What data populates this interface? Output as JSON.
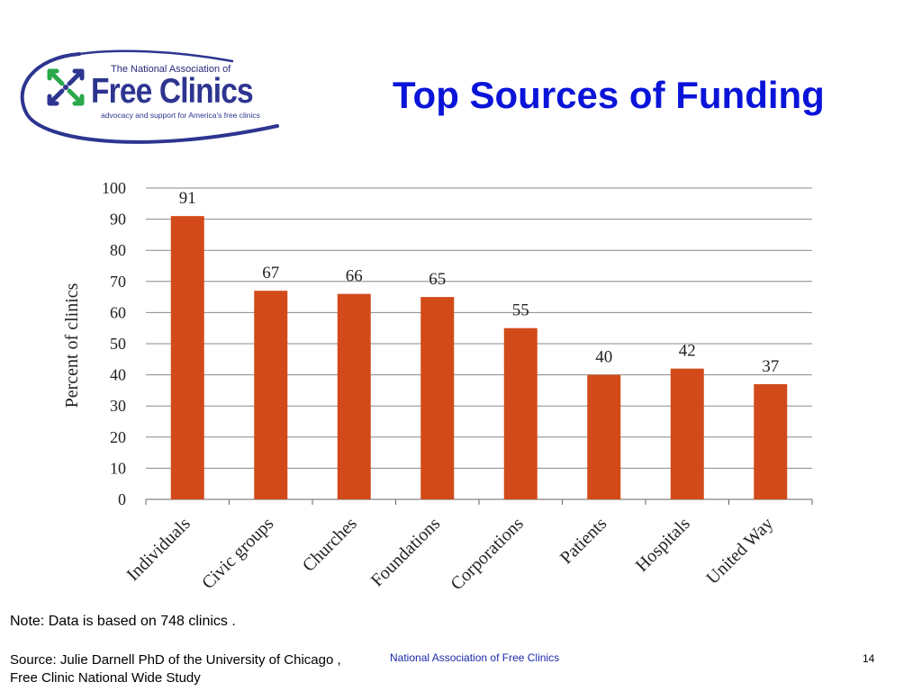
{
  "slide": {
    "title": "Top Sources of Funding",
    "logo": {
      "org_top": "The National Association of",
      "name": "Free Clinics",
      "tagline": "advocacy and support for America's free clinics"
    },
    "note": "Note: Data is based on 748 clinics .",
    "source": "Source: Julie Darnell PhD of the University of Chicago , Free Clinic National Wide Study",
    "footer_org": "National Association of Free Clinics",
    "page_number": "14"
  },
  "colors": {
    "title": "#0a14d9",
    "bar": "#d24a19",
    "logo_blue": "#2d3590",
    "logo_green": "#2aa84a"
  },
  "chart_data": {
    "type": "bar",
    "title": "",
    "xlabel": "",
    "ylabel": "Percent of clinics",
    "categories": [
      "Individuals",
      "Civic groups",
      "Churches",
      "Foundations",
      "Corporations",
      "Patients",
      "Hospitals",
      "United Way"
    ],
    "values": [
      91,
      67,
      66,
      65,
      55,
      40,
      42,
      37
    ],
    "ylim": [
      0,
      100
    ],
    "yticks": [
      0,
      10,
      20,
      30,
      40,
      50,
      60,
      70,
      80,
      90,
      100
    ],
    "grid": true,
    "data_labels": true,
    "legend": "none"
  }
}
